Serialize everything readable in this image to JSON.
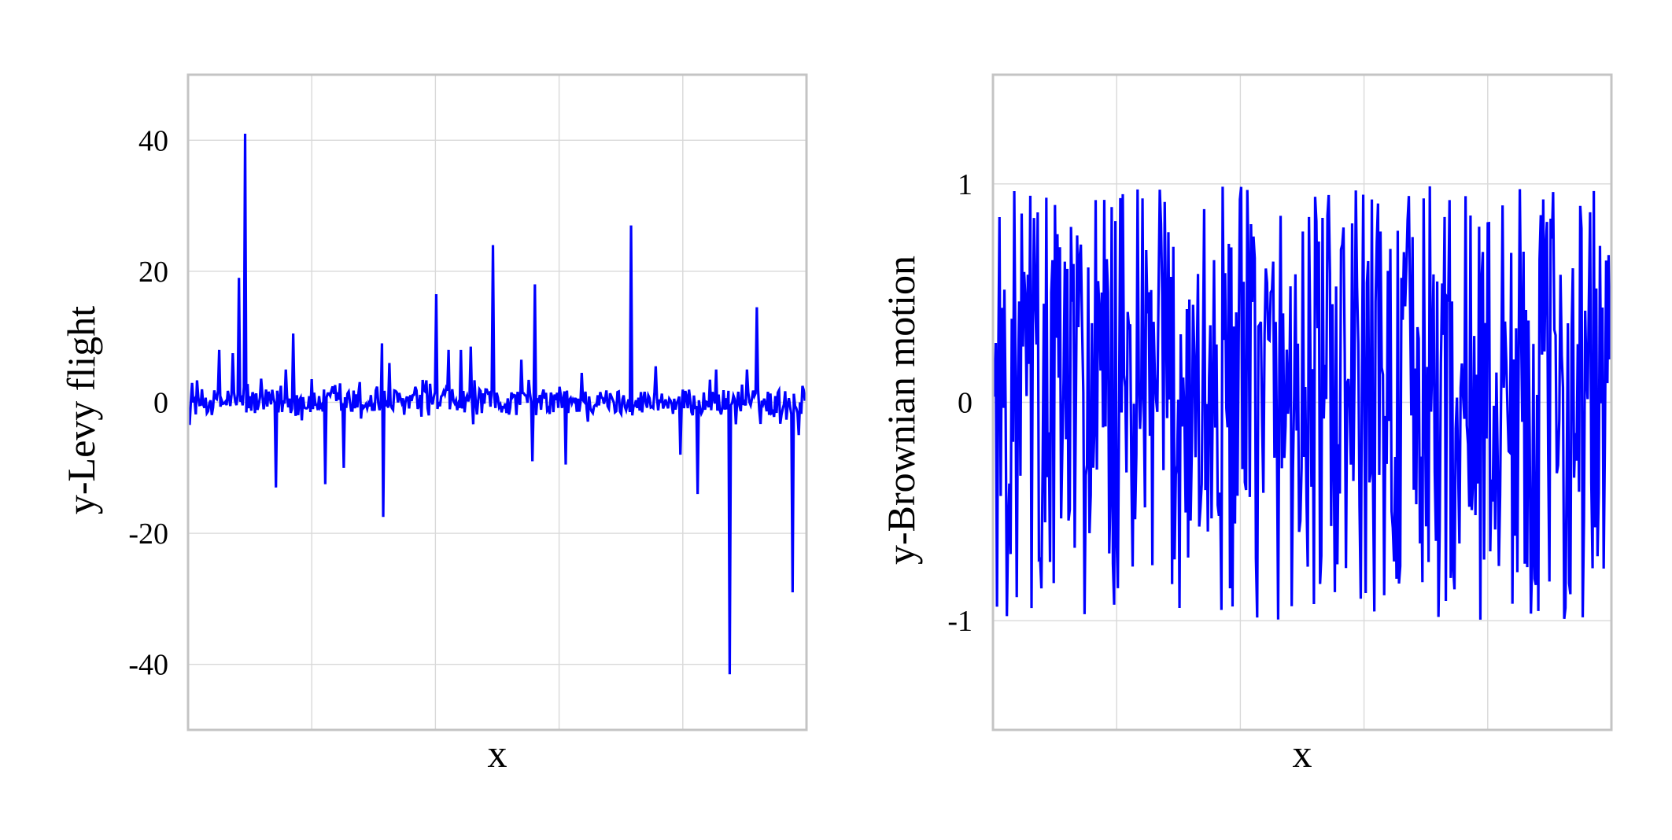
{
  "chart_data": [
    {
      "type": "line",
      "title": "",
      "xlabel": "x",
      "ylabel": "y-Levy flight",
      "ylim": [
        -50,
        50
      ],
      "yticks": [
        -40,
        -20,
        0,
        20,
        40
      ],
      "yticklabels": [
        "-40",
        "-20",
        "0",
        "20",
        "40"
      ],
      "x_gridlines": 4,
      "grid": true,
      "color": "#0000ff",
      "n_points": 500,
      "noise_amplitude": 2,
      "spikes": [
        {
          "x": 45,
          "y": 41
        },
        {
          "x": 40,
          "y": 19
        },
        {
          "x": 24,
          "y": 8
        },
        {
          "x": 35,
          "y": 7.5
        },
        {
          "x": 84,
          "y": 10.5
        },
        {
          "x": 70,
          "y": -13
        },
        {
          "x": 78,
          "y": 5
        },
        {
          "x": 110,
          "y": -12.5
        },
        {
          "x": 125,
          "y": -10
        },
        {
          "x": 157,
          "y": -17.5
        },
        {
          "x": 156,
          "y": 9
        },
        {
          "x": 162,
          "y": 6
        },
        {
          "x": 200,
          "y": 16.5
        },
        {
          "x": 210,
          "y": 8
        },
        {
          "x": 220,
          "y": 8
        },
        {
          "x": 228,
          "y": 8.5
        },
        {
          "x": 246,
          "y": 24
        },
        {
          "x": 269,
          "y": 6.5
        },
        {
          "x": 280,
          "y": 18
        },
        {
          "x": 278,
          "y": -9
        },
        {
          "x": 305,
          "y": -9.5
        },
        {
          "x": 318,
          "y": 4.5
        },
        {
          "x": 358,
          "y": 27
        },
        {
          "x": 378,
          "y": 5.5
        },
        {
          "x": 398,
          "y": -8
        },
        {
          "x": 412,
          "y": -14
        },
        {
          "x": 427,
          "y": 5
        },
        {
          "x": 438,
          "y": -41.5
        },
        {
          "x": 460,
          "y": 14.5
        },
        {
          "x": 452,
          "y": 5
        },
        {
          "x": 489,
          "y": -29
        },
        {
          "x": 494,
          "y": -5
        },
        {
          "x": 497,
          "y": 2.5
        }
      ]
    },
    {
      "type": "line",
      "title": "",
      "xlabel": "x",
      "ylabel": "y-Brownian motion",
      "ylim": [
        -1.5,
        1.5
      ],
      "yticks": [
        -1,
        0,
        1
      ],
      "yticklabels": [
        "-1",
        "0",
        "1"
      ],
      "x_gridlines": 4,
      "grid": true,
      "color": "#0000ff",
      "n_points": 500,
      "value_range": [
        -1,
        1
      ],
      "distribution": "uniform"
    }
  ]
}
